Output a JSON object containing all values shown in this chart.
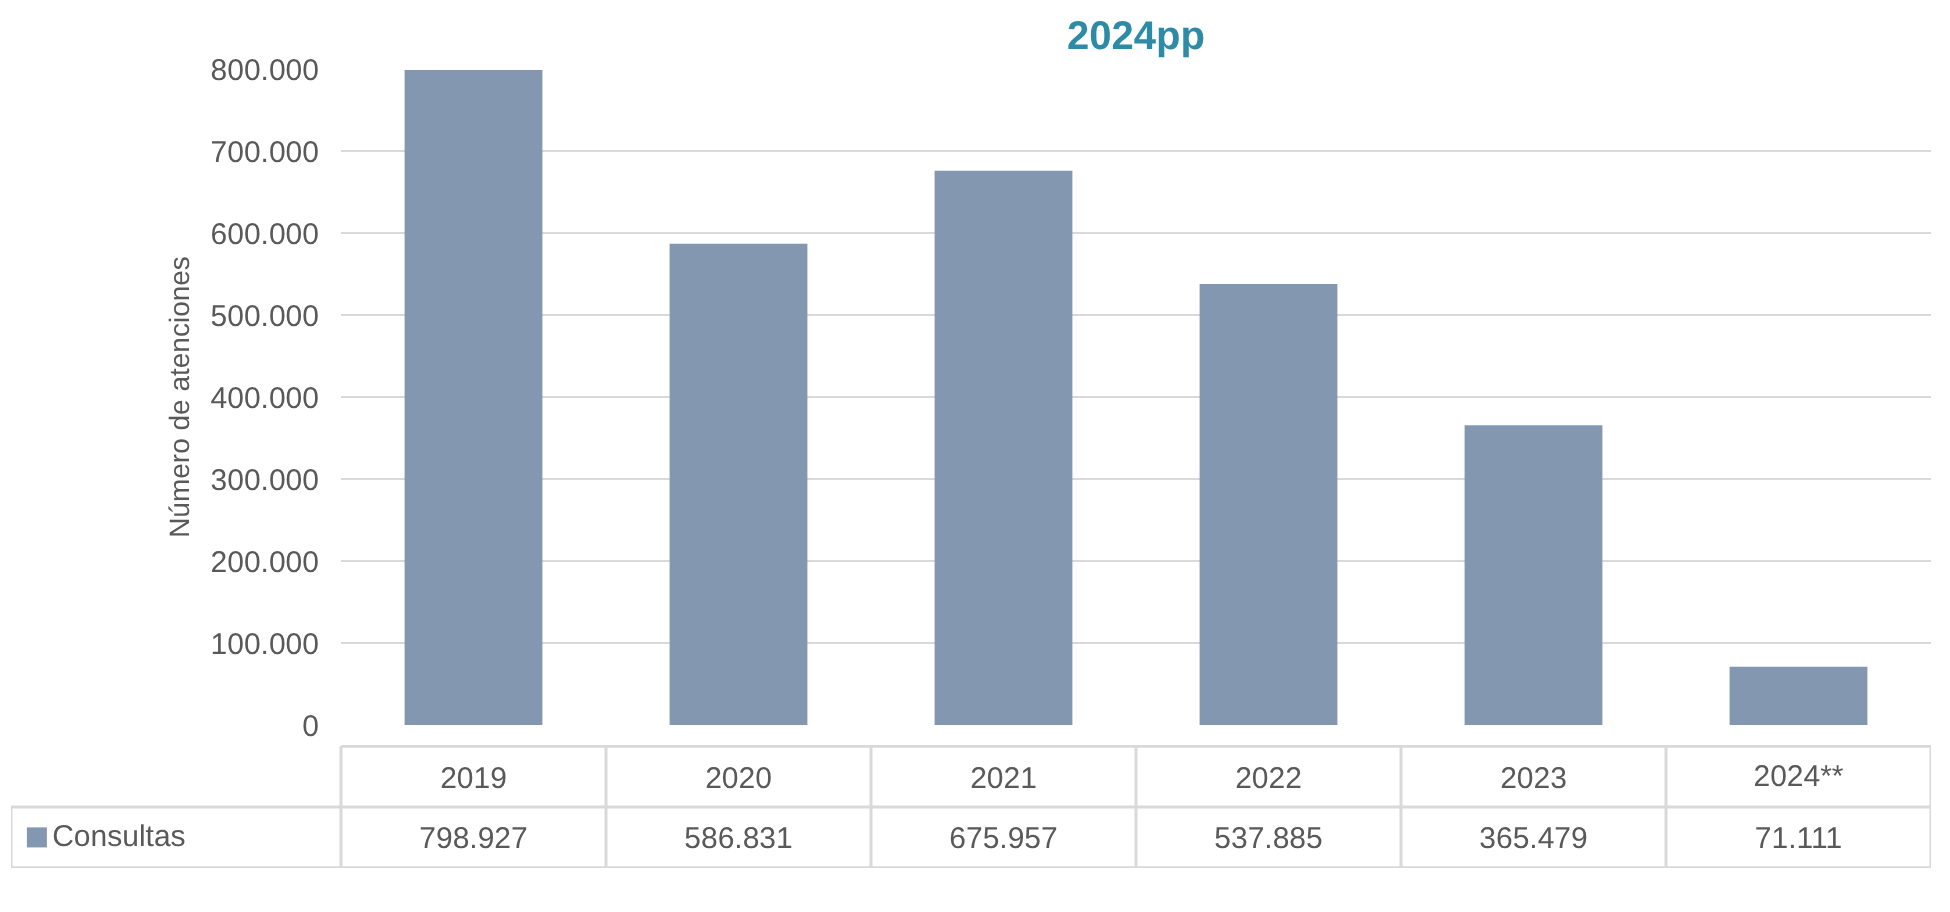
{
  "chart_data": {
    "type": "bar",
    "title": "2024pp",
    "ylabel": "Número de atenciones",
    "categories": [
      "2019",
      "2020",
      "2021",
      "2022",
      "2023",
      "2024**"
    ],
    "series": [
      {
        "name": "Consultas",
        "color": "#8497b0",
        "values": [
          798927,
          586831,
          675957,
          537885,
          365479,
          71111
        ],
        "value_labels": [
          "798.927",
          "586.831",
          "675.957",
          "537.885",
          "365.479",
          "71.111"
        ]
      }
    ],
    "ylim": [
      0,
      800000
    ],
    "yticks": [
      {
        "value": 0,
        "label": "0"
      },
      {
        "value": 100000,
        "label": "100.000"
      },
      {
        "value": 200000,
        "label": "200.000"
      },
      {
        "value": 300000,
        "label": "300.000"
      },
      {
        "value": 400000,
        "label": "400.000"
      },
      {
        "value": 500000,
        "label": "500.000"
      },
      {
        "value": 600000,
        "label": "600.000"
      },
      {
        "value": 700000,
        "label": "700.000"
      },
      {
        "value": 800000,
        "label": "800.000"
      }
    ],
    "grid": "y",
    "legend": "bottom"
  }
}
